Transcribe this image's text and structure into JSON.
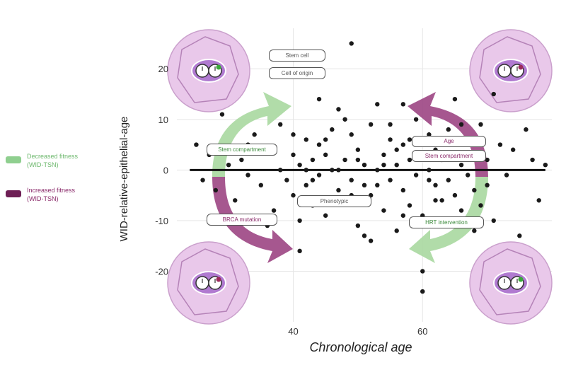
{
  "chart_data": {
    "type": "scatter",
    "xlabel": "Chronological age",
    "ylabel": "WID-relative-epithelial-age",
    "xlim": [
      22,
      80
    ],
    "ylim": [
      -30,
      28
    ],
    "x_ticks": [
      40,
      60
    ],
    "y_ticks": [
      20,
      10,
      0,
      -10,
      -20
    ],
    "grid": true,
    "reference_line_y": 0,
    "points_note": "approx. 300 black points scattered around y=0",
    "points": [
      [
        25,
        5
      ],
      [
        26,
        -2
      ],
      [
        27,
        3
      ],
      [
        28,
        -4
      ],
      [
        29,
        11
      ],
      [
        30,
        1
      ],
      [
        31,
        -6
      ],
      [
        32,
        2
      ],
      [
        33,
        -1
      ],
      [
        34,
        7
      ],
      [
        35,
        -3
      ],
      [
        36,
        4
      ],
      [
        37,
        -8
      ],
      [
        38,
        9
      ],
      [
        38,
        0
      ],
      [
        39,
        -2
      ],
      [
        40,
        3
      ],
      [
        40,
        -5
      ],
      [
        41,
        1
      ],
      [
        41,
        -10
      ],
      [
        42,
        6
      ],
      [
        42,
        -3
      ],
      [
        43,
        2
      ],
      [
        43,
        -7
      ],
      [
        44,
        5
      ],
      [
        44,
        -1
      ],
      [
        45,
        -9
      ],
      [
        45,
        3
      ],
      [
        46,
        0
      ],
      [
        46,
        8
      ],
      [
        47,
        -4
      ],
      [
        47,
        12
      ],
      [
        48,
        2
      ],
      [
        48,
        -6
      ],
      [
        49,
        -2
      ],
      [
        49,
        7
      ],
      [
        50,
        4
      ],
      [
        50,
        -11
      ],
      [
        51,
        1
      ],
      [
        51,
        -3
      ],
      [
        52,
        9
      ],
      [
        52,
        -5
      ],
      [
        53,
        0
      ],
      [
        53,
        13
      ],
      [
        54,
        -8
      ],
      [
        54,
        3
      ],
      [
        55,
        6
      ],
      [
        55,
        -2
      ],
      [
        56,
        -12
      ],
      [
        56,
        1
      ],
      [
        57,
        5
      ],
      [
        57,
        -4
      ],
      [
        58,
        2
      ],
      [
        58,
        -7
      ],
      [
        59,
        10
      ],
      [
        59,
        -1
      ],
      [
        60,
        3
      ],
      [
        60,
        -9
      ],
      [
        61,
        0
      ],
      [
        61,
        7
      ],
      [
        62,
        -3
      ],
      [
        62,
        4
      ],
      [
        63,
        -6
      ],
      [
        63,
        2
      ],
      [
        64,
        8
      ],
      [
        64,
        -2
      ],
      [
        65,
        14
      ],
      [
        65,
        -5
      ],
      [
        66,
        1
      ],
      [
        66,
        -8
      ],
      [
        67,
        6
      ],
      [
        67,
        -1
      ],
      [
        68,
        3
      ],
      [
        68,
        -4
      ],
      [
        69,
        -7
      ],
      [
        69,
        9
      ],
      [
        70,
        2
      ],
      [
        70,
        -3
      ],
      [
        71,
        15
      ],
      [
        71,
        -10
      ],
      [
        72,
        5
      ],
      [
        73,
        -1
      ],
      [
        74,
        4
      ],
      [
        75,
        -13
      ],
      [
        76,
        8
      ],
      [
        77,
        2
      ],
      [
        78,
        -6
      ],
      [
        79,
        1
      ],
      [
        49,
        25
      ],
      [
        60,
        -20
      ],
      [
        60,
        -24
      ],
      [
        41,
        -16
      ],
      [
        44,
        14
      ],
      [
        52,
        -14
      ],
      [
        57,
        13
      ],
      [
        63,
        -11
      ],
      [
        48,
        10
      ],
      [
        55,
        9
      ],
      [
        46,
        -6
      ],
      [
        53,
        -3
      ],
      [
        50,
        2
      ],
      [
        45,
        6
      ],
      [
        58,
        6
      ],
      [
        62,
        -6
      ],
      [
        40,
        7
      ],
      [
        36,
        -11
      ],
      [
        33,
        5
      ],
      [
        51,
        -13
      ],
      [
        66,
        9
      ],
      [
        68,
        -12
      ],
      [
        47,
        0
      ],
      [
        54,
        1
      ],
      [
        56,
        4
      ],
      [
        43,
        -2
      ],
      [
        49,
        -5
      ],
      [
        61,
        -2
      ],
      [
        64,
        5
      ],
      [
        59,
        3
      ],
      [
        42,
        0
      ],
      [
        57,
        -9
      ]
    ]
  },
  "legend": {
    "decreased_label": "Decreased fitness",
    "decreased_sub": "(WID-TSN)",
    "increased_label": "Increased fitness",
    "increased_sub": "(WID-TSN)",
    "green_color": "#8fcf8f",
    "purple_color": "#8a2a6a"
  },
  "callouts": {
    "top_left_1": "Stem cell",
    "top_left_2": "Cell of origin",
    "left_green": "Stem compartment",
    "left_purple": "BRCA mutation",
    "center": "Phenotypic",
    "right_purple_1": "Stem compartment",
    "right_purple_2": "Age",
    "right_green": "HRT intervention"
  },
  "colors": {
    "circle_fill": "#e9c8ea",
    "circle_edge": "#caa0cc",
    "points": "#1a1a1a",
    "arrow_green": "#a8d8a0",
    "arrow_purple": "#9c4583"
  }
}
